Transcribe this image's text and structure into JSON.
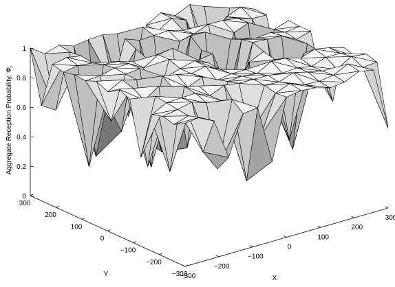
{
  "chart_data": {
    "type": "surface",
    "title": "",
    "xlabel": "X",
    "ylabel": "Y",
    "zlabel": "Aggregate Reception Probability, Φ",
    "zlabel_subscript": "r",
    "xlim": [
      -300,
      300
    ],
    "ylim": [
      -300,
      300
    ],
    "zlim": [
      0,
      1
    ],
    "x_ticks": [
      -300,
      -200,
      -100,
      0,
      100,
      200,
      300
    ],
    "x_tick_labels": [
      "−300",
      "−200",
      "−100",
      "0",
      "100",
      "200",
      "300"
    ],
    "y_ticks": [
      -300,
      -200,
      -100,
      0,
      100,
      200,
      300
    ],
    "y_tick_labels": [
      "−300",
      "−200",
      "−100",
      "0",
      "100",
      "200",
      "300"
    ],
    "z_ticks": [
      0,
      0.2,
      0.4,
      0.6,
      0.8,
      1
    ],
    "z_tick_labels": [
      "0",
      "0.2",
      "0.4",
      "0.6",
      "0.8",
      "1"
    ],
    "surface": {
      "shading": "grayscale",
      "mesh": "triangulated",
      "z_max": 1.0,
      "z_typical_min": 0.5,
      "z_min": 0.25,
      "edge_color": "#000000"
    },
    "grid": false
  }
}
